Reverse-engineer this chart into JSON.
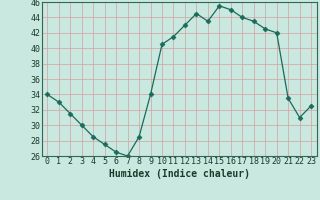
{
  "x": [
    0,
    1,
    2,
    3,
    4,
    5,
    6,
    7,
    8,
    9,
    10,
    11,
    12,
    13,
    14,
    15,
    16,
    17,
    18,
    19,
    20,
    21,
    22,
    23
  ],
  "y": [
    34,
    33,
    31.5,
    30,
    28.5,
    27.5,
    26.5,
    26,
    28.5,
    34,
    40.5,
    41.5,
    43,
    44.5,
    43.5,
    45.5,
    45,
    44,
    43.5,
    42.5,
    42,
    33.5,
    31,
    32.5
  ],
  "line_color": "#1a6b5a",
  "marker": "D",
  "marker_size": 2.5,
  "bg_color": "#c8e8e0",
  "grid_color_x": "#d4a0a0",
  "grid_color_y": "#d4a0a0",
  "xlabel": "Humidex (Indice chaleur)",
  "ylim": [
    26,
    46
  ],
  "xlim": [
    -0.5,
    23.5
  ],
  "yticks": [
    26,
    28,
    30,
    32,
    34,
    36,
    38,
    40,
    42,
    44,
    46
  ],
  "xticks": [
    0,
    1,
    2,
    3,
    4,
    5,
    6,
    7,
    8,
    9,
    10,
    11,
    12,
    13,
    14,
    15,
    16,
    17,
    18,
    19,
    20,
    21,
    22,
    23
  ],
  "xlabel_fontsize": 7.0,
  "tick_fontsize": 6.0,
  "axis_color": "#336655",
  "spine_color": "#336655"
}
